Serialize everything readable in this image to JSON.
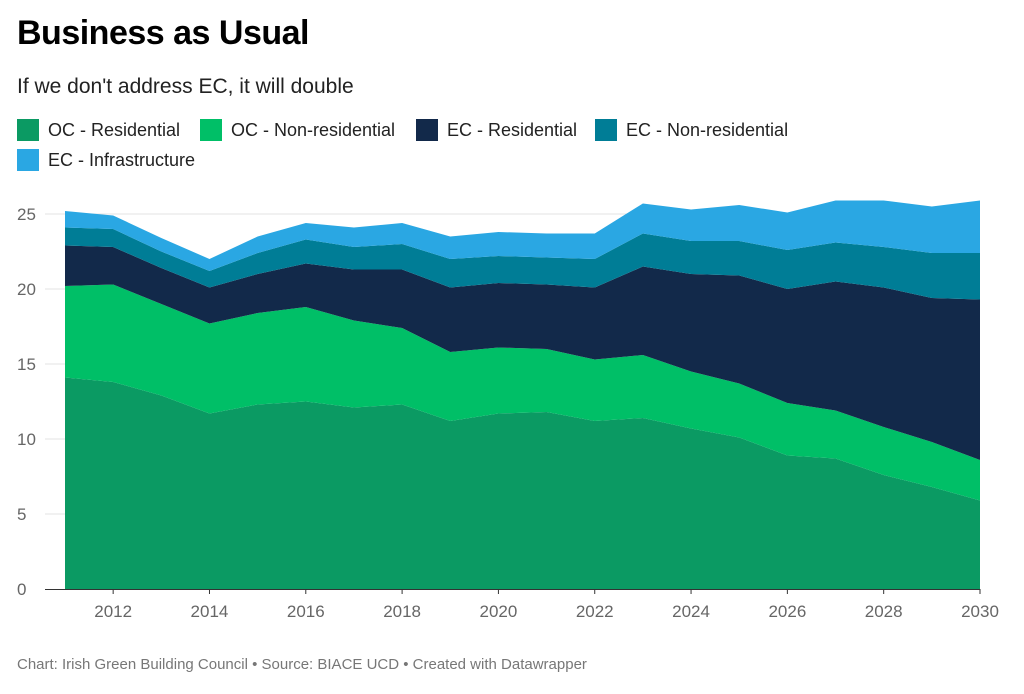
{
  "title": "Business as Usual",
  "subtitle": "If we don't address EC, it will double",
  "footer": "Chart: Irish Green Building Council • Source: BIACE UCD • Created with Datawrapper",
  "chart_data": {
    "type": "area",
    "stacked": true,
    "x": [
      2011,
      2012,
      2013,
      2014,
      2015,
      2016,
      2017,
      2018,
      2019,
      2020,
      2021,
      2022,
      2023,
      2024,
      2025,
      2026,
      2027,
      2028,
      2029,
      2030
    ],
    "xticks": [
      "2012",
      "2014",
      "2016",
      "2018",
      "2020",
      "2022",
      "2024",
      "2026",
      "2028",
      "2030"
    ],
    "yticks": [
      "0",
      "5",
      "10",
      "15",
      "20",
      "25"
    ],
    "ylim": [
      0,
      26
    ],
    "xlabel": "",
    "ylabel": "",
    "grid": true,
    "legend_position": "top",
    "series": [
      {
        "name": "OC - Residential",
        "color": "#0b9a63",
        "values": [
          14.1,
          13.8,
          12.9,
          11.7,
          12.3,
          12.5,
          12.1,
          12.3,
          11.2,
          11.7,
          11.8,
          11.2,
          11.4,
          10.7,
          10.1,
          8.9,
          8.7,
          7.6,
          6.8,
          5.9
        ]
      },
      {
        "name": "OC - Non-residential",
        "color": "#00bf67",
        "values": [
          6.1,
          6.5,
          6.1,
          6.0,
          6.1,
          6.3,
          5.8,
          5.1,
          4.6,
          4.4,
          4.2,
          4.1,
          4.2,
          3.8,
          3.6,
          3.5,
          3.2,
          3.2,
          3.0,
          2.7
        ]
      },
      {
        "name": "EC - Residential",
        "color": "#12294a",
        "values": [
          2.7,
          2.5,
          2.4,
          2.4,
          2.6,
          2.9,
          3.4,
          3.9,
          4.3,
          4.3,
          4.3,
          4.8,
          5.9,
          6.5,
          7.2,
          7.6,
          8.6,
          9.3,
          9.6,
          10.7
        ]
      },
      {
        "name": "EC - Non-residential",
        "color": "#007d96",
        "values": [
          1.2,
          1.2,
          1.1,
          1.1,
          1.4,
          1.6,
          1.5,
          1.7,
          1.9,
          1.8,
          1.8,
          1.9,
          2.2,
          2.2,
          2.3,
          2.6,
          2.6,
          2.7,
          3.0,
          3.1
        ]
      },
      {
        "name": "EC - Infrastructure",
        "color": "#2aa7e3",
        "values": [
          1.1,
          0.9,
          0.9,
          0.8,
          1.1,
          1.1,
          1.3,
          1.4,
          1.5,
          1.6,
          1.6,
          1.7,
          2.0,
          2.1,
          2.4,
          2.5,
          2.8,
          3.1,
          3.1,
          3.5
        ]
      }
    ]
  }
}
